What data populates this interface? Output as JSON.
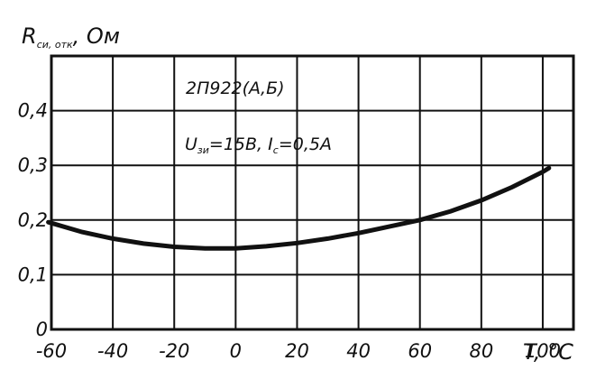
{
  "chart_data": {
    "type": "line",
    "title": "",
    "ylabel_main": "R",
    "ylabel_sub": "си, отк",
    "ylabel_unit": ", Ом",
    "xlabel": "T, °C",
    "xlim": [
      -60,
      100
    ],
    "ylim": [
      0,
      0.5
    ],
    "x_ticks": [
      "-60",
      "-40",
      "-20",
      "0",
      "20",
      "40",
      "60",
      "80",
      "100"
    ],
    "y_ticks": [
      "0",
      "0,1",
      "0,2",
      "0,3",
      "0,4"
    ],
    "grid": true,
    "annotations": {
      "device": "2П922(А,Б)",
      "cond1_main": "U",
      "cond1_sub": "зи",
      "cond1_rest": "=15В, I",
      "cond2_sub": "c",
      "cond2_rest": "=0,5А"
    },
    "series": [
      {
        "x": [
          -61,
          -50,
          -40,
          -30,
          -20,
          -10,
          0,
          10,
          20,
          30,
          40,
          50,
          60,
          70,
          80,
          90,
          100,
          102
        ],
        "y": [
          0.196,
          0.178,
          0.166,
          0.157,
          0.151,
          0.148,
          0.148,
          0.152,
          0.158,
          0.166,
          0.176,
          0.188,
          0.2,
          0.216,
          0.236,
          0.26,
          0.288,
          0.295
        ]
      }
    ]
  }
}
